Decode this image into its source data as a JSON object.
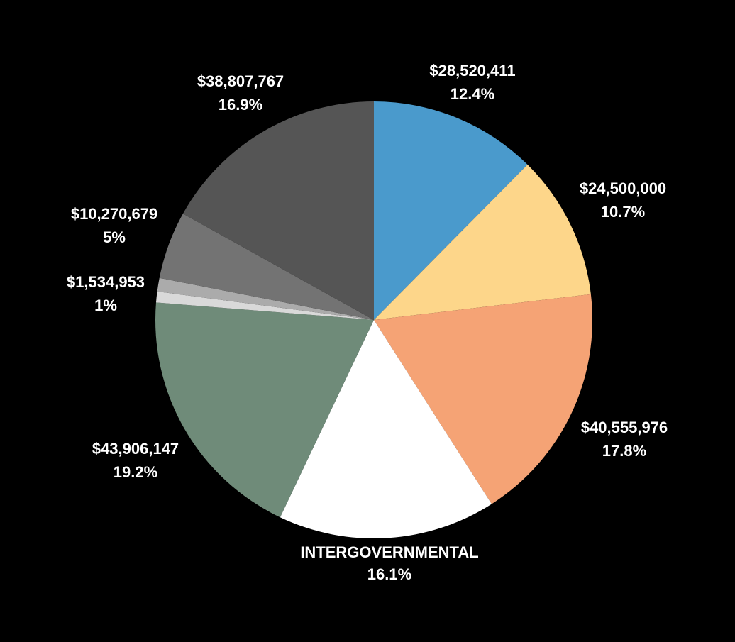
{
  "chart_data": {
    "type": "pie",
    "title": "",
    "slices": [
      {
        "value_label": "$28,520,411",
        "percent_label": "12.4%",
        "percent": 12.4,
        "color": "#4a9acc"
      },
      {
        "value_label": "$24,500,000",
        "percent_label": "10.7%",
        "percent": 10.7,
        "color": "#fdd68a"
      },
      {
        "value_label": "$40,555,976",
        "percent_label": "17.8%",
        "percent": 17.8,
        "color": "#f5a375"
      },
      {
        "value_label": "INTERGOVERNMENTAL",
        "percent_label": "16.1%",
        "percent": 16.1,
        "color": "#ffffff"
      },
      {
        "value_label": "$43,906,147",
        "percent_label": "19.2%",
        "percent": 19.2,
        "color": "#6f8b79"
      },
      {
        "value_label": "",
        "percent_label": "",
        "percent": 0.8,
        "color": "#d9d9d9"
      },
      {
        "value_label": "$1,534,953",
        "percent_label": "1%",
        "percent": 1.0,
        "color": "#ababab"
      },
      {
        "value_label": "$10,270,679",
        "percent_label": "5%",
        "percent": 5.0,
        "color": "#737373"
      },
      {
        "value_label": "$38,807,767",
        "percent_label": "16.9%",
        "percent": 16.9,
        "color": "#555555"
      }
    ]
  }
}
